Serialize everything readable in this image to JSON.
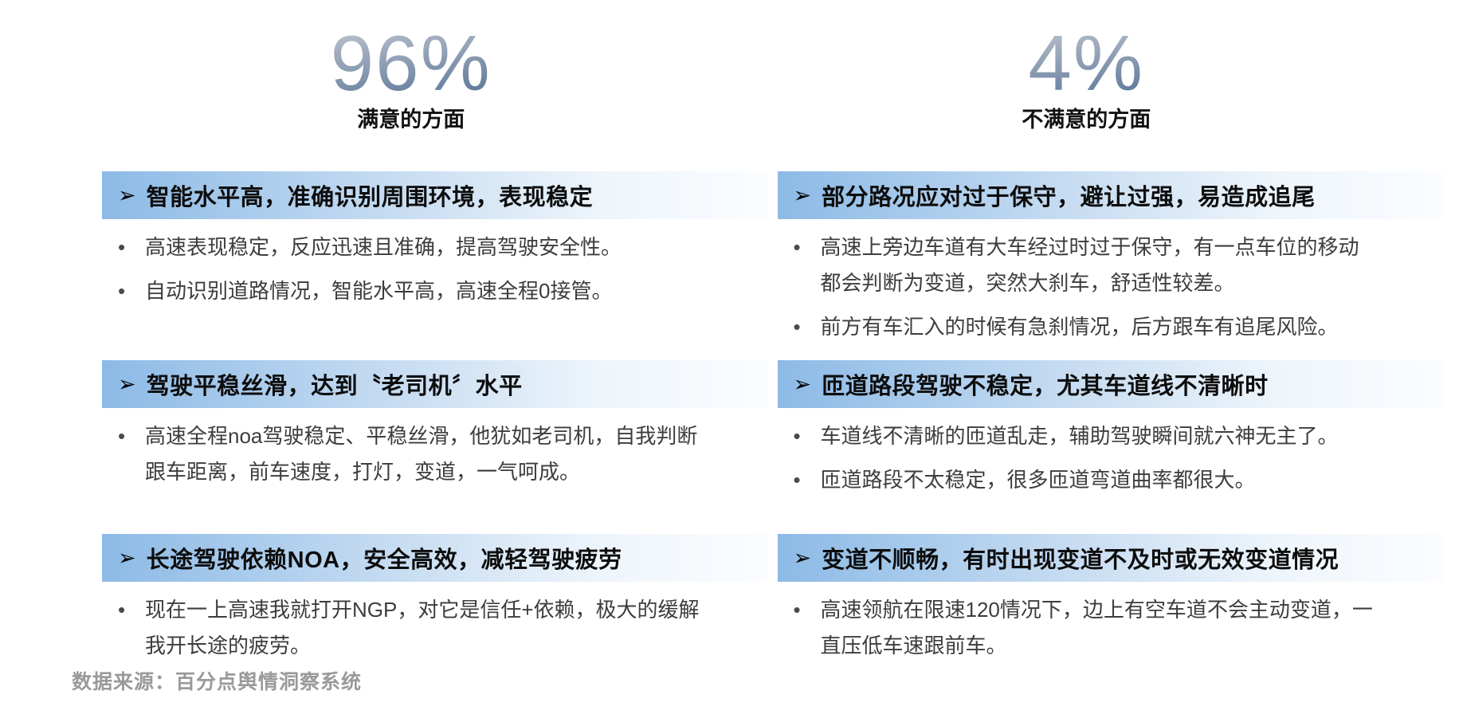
{
  "slide": {
    "icons": {
      "topic_arrow": "➢",
      "quote_bullet": "•"
    },
    "colors": {
      "band_gradient_start": "#8cbae6",
      "band_gradient_end": "#fbfdff",
      "percent_gradient_top": "#b9c0cb",
      "percent_gradient_bottom": "#5d7799",
      "title_text": "#0d0d0d",
      "quote_text": "#3d3d3d",
      "footer_text": "#9a9a9a"
    },
    "footer": {
      "source_note": "数据来源：百分点舆情洞察系统"
    },
    "columns": [
      {
        "id": "satisfied",
        "percent": "96%",
        "subtitle": "满意的方面",
        "sections": [
          {
            "title": "智能水平高，准确识别周围环境，表现稳定",
            "bullets": [
              "高速表现稳定，反应迅速且准确，提高驾驶安全性。",
              "自动识别道路情况，智能水平高，高速全程0接管。"
            ]
          },
          {
            "title": "驾驶平稳丝滑，达到〝老司机〞水平",
            "bullets": [
              "高速全程noa驾驶稳定、平稳丝滑，他犹如老司机，自我判断跟车距离，前车速度，打灯，变道，一气呵成。"
            ]
          },
          {
            "title": "长途驾驶依赖NOA，安全高效，减轻驾驶疲劳",
            "bullets": [
              "现在一上高速我就打开NGP，对它是信任+依赖，极大的缓解我开长途的疲劳。"
            ]
          }
        ]
      },
      {
        "id": "unsatisfied",
        "percent": "4%",
        "subtitle": "不满意的方面",
        "sections": [
          {
            "title": "部分路况应对过于保守，避让过强，易造成追尾",
            "bullets": [
              "高速上旁边车道有大车经过时过于保守，有一点车位的移动都会判断为变道，突然大刹车，舒适性较差。",
              "前方有车汇入的时候有急刹情况，后方跟车有追尾风险。"
            ]
          },
          {
            "title": "匝道路段驾驶不稳定，尤其车道线不清晰时",
            "bullets": [
              "车道线不清晰的匝道乱走，辅助驾驶瞬间就六神无主了。",
              "匝道路段不太稳定，很多匝道弯道曲率都很大。"
            ]
          },
          {
            "title": "变道不顺畅，有时出现变道不及时或无效变道情况",
            "bullets": [
              "高速领航在限速120情况下，边上有空车道不会主动变道，一直压低车速跟前车。"
            ]
          }
        ]
      }
    ]
  }
}
